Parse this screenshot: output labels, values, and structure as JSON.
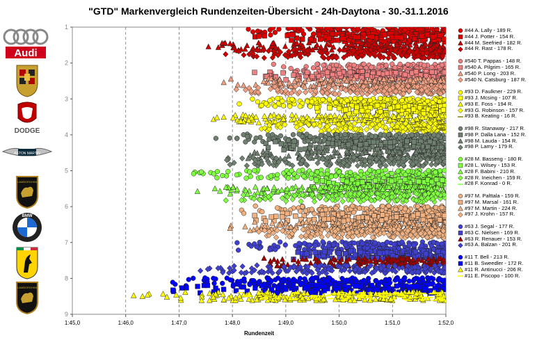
{
  "chart_data": {
    "type": "scatter",
    "title": "\"GTD\" Markenvergleich Rundenzeiten-Übersicht - 24h-Daytona - 30.-31.1.2016",
    "xlabel": "Rundenzeit",
    "ylabel": "",
    "x_ticks": [
      "1:45,0",
      "1:46,0",
      "1:47,0",
      "1:48,0",
      "1:49,0",
      "1:50,0",
      "1:51,0",
      "1:52,0"
    ],
    "x_range_seconds": [
      105,
      112
    ],
    "y_ticks": [
      "1",
      "2",
      "3",
      "4",
      "5",
      "6",
      "7",
      "8",
      "9"
    ],
    "y_range": [
      1,
      9
    ],
    "grid": "vertical dashed",
    "legend_position": "right",
    "brands": [
      {
        "name": "Audi",
        "car": "#44",
        "band": [
          1,
          2
        ]
      },
      {
        "name": "Porsche",
        "car": "#540",
        "band": [
          2,
          3
        ]
      },
      {
        "name": "Dodge",
        "car": "#93",
        "band": [
          3,
          4
        ]
      },
      {
        "name": "Aston Martin",
        "car": "#98",
        "band": [
          4,
          5
        ]
      },
      {
        "name": "Lamborghini",
        "car": "#28",
        "band": [
          5,
          6
        ]
      },
      {
        "name": "BMW",
        "car": "#97",
        "band": [
          6,
          7
        ]
      },
      {
        "name": "Ferrari",
        "car": "#63",
        "band": [
          7,
          8
        ]
      },
      {
        "name": "Lamborghini",
        "car": "#11",
        "band": [
          8,
          9
        ]
      }
    ],
    "series": [
      {
        "name": "#44 A. Lally - 189 R.",
        "marker": "circle",
        "color": "#e00000",
        "y": 1.1,
        "xmin": 108.0,
        "laps": 189
      },
      {
        "name": "#44 J. Potter - 154 R.",
        "marker": "square",
        "color": "#e00000",
        "y": 1.3,
        "xmin": 108.2,
        "laps": 154
      },
      {
        "name": "#44 M. Seefried - 182 R.",
        "marker": "triangle",
        "color": "#cc0000",
        "y": 1.55,
        "xmin": 107.4,
        "laps": 182
      },
      {
        "name": "#44 R. Rast - 178 R.",
        "marker": "diamond",
        "color": "#cc0000",
        "y": 1.75,
        "xmin": 107.7,
        "laps": 178
      },
      {
        "name": "#540 T. Pappas - 148 R.",
        "marker": "circle",
        "color": "#f08080",
        "y": 2.15,
        "xmin": 108.6,
        "laps": 148
      },
      {
        "name": "#540 A. Pilgrim - 165 R.",
        "marker": "square",
        "color": "#f08080",
        "y": 2.35,
        "xmin": 108.3,
        "laps": 165
      },
      {
        "name": "#540 P. Long - 203 R.",
        "marker": "triangle",
        "color": "#f0a080",
        "y": 2.55,
        "xmin": 107.8,
        "laps": 203
      },
      {
        "name": "#540 N. Catsburg - 187 R.",
        "marker": "diamond",
        "color": "#f0a080",
        "y": 2.75,
        "xmin": 107.8,
        "laps": 187
      },
      {
        "name": "#93 D. Faulkner - 229 R.",
        "marker": "circle",
        "color": "#ffff00",
        "y": 3.1,
        "xmin": 108.0,
        "laps": 229
      },
      {
        "name": "#93 J. Mcsing - 107 R.",
        "marker": "square",
        "color": "#ffff00",
        "y": 3.3,
        "xmin": 109.5,
        "laps": 107
      },
      {
        "name": "#93 E. Foss - 194 R.",
        "marker": "triangle",
        "color": "#ffff00",
        "y": 3.55,
        "xmin": 107.2,
        "laps": 194
      },
      {
        "name": "#93 G. Robinson - 157 R.",
        "marker": "diamond",
        "color": "#ffff00",
        "y": 3.8,
        "xmin": 108.4,
        "laps": 157
      },
      {
        "name": "#93 B. Keating - 16 R.",
        "marker": "star",
        "color": "#808000",
        "y": 3.8,
        "xmin": 111.0,
        "laps": 16
      },
      {
        "name": "#98 R. Stanaway - 217 R.",
        "marker": "circle",
        "color": "#708070",
        "y": 4.1,
        "xmin": 107.6,
        "laps": 217
      },
      {
        "name": "#98 P. Dalla Lana - 152 R.",
        "marker": "square",
        "color": "#708070",
        "y": 4.3,
        "xmin": 108.4,
        "laps": 152
      },
      {
        "name": "#98 M. Lauda - 154 R.",
        "marker": "triangle",
        "color": "#708070",
        "y": 4.55,
        "xmin": 108.0,
        "laps": 154
      },
      {
        "name": "#98 P. Lamy - 179 R.",
        "marker": "diamond",
        "color": "#708070",
        "y": 4.75,
        "xmin": 107.7,
        "laps": 179
      },
      {
        "name": "#28 M. Basseng - 180 R.",
        "marker": "circle",
        "color": "#80ff40",
        "y": 5.1,
        "xmin": 107.0,
        "laps": 180
      },
      {
        "name": "#28 L. Wilsey - 153 R.",
        "marker": "square",
        "color": "#80ff40",
        "y": 5.35,
        "xmin": 109.3,
        "laps": 153
      },
      {
        "name": "#28 F. Babini - 210 R.",
        "marker": "triangle",
        "color": "#80ff40",
        "y": 5.55,
        "xmin": 107.3,
        "laps": 210
      },
      {
        "name": "#28 R. Ineichen - 159 R.",
        "marker": "diamond",
        "color": "#80ff40",
        "y": 5.75,
        "xmin": 107.7,
        "laps": 159
      },
      {
        "name": "#28 F. Konrad - 0 R.",
        "marker": "star",
        "color": "#80ff40",
        "y": 5.75,
        "xmin": 112.0,
        "laps": 0
      },
      {
        "name": "#97 M. Palttala - 159 R.",
        "marker": "circle",
        "color": "#f0b080",
        "y": 6.1,
        "xmin": 108.0,
        "laps": 159
      },
      {
        "name": "#97 M. Marsal - 161 R.",
        "marker": "square",
        "color": "#f0b080",
        "y": 6.3,
        "xmin": 108.3,
        "laps": 161
      },
      {
        "name": "#97 M. Martin - 224 R.",
        "marker": "triangle",
        "color": "#f0b080",
        "y": 6.55,
        "xmin": 107.8,
        "laps": 224
      },
      {
        "name": "#97 J. Krohn - 157 R.",
        "marker": "diamond",
        "color": "#f0b080",
        "y": 6.75,
        "xmin": 108.2,
        "laps": 157
      },
      {
        "name": "#63 J. Segal - 177 R.",
        "marker": "circle",
        "color": "#4040d0",
        "y": 7.1,
        "xmin": 108.0,
        "laps": 177
      },
      {
        "name": "#63 C. Nielsen - 169 R.",
        "marker": "square",
        "color": "#4040d0",
        "y": 7.35,
        "xmin": 109.0,
        "laps": 169
      },
      {
        "name": "#63 R. Renauer - 153 R.",
        "marker": "triangle",
        "color": "#a00000",
        "y": 7.55,
        "xmin": 108.5,
        "laps": 153
      },
      {
        "name": "#63 A. Balzan - 201 R.",
        "marker": "diamond",
        "color": "#4040d0",
        "y": 7.75,
        "xmin": 107.2,
        "laps": 201
      },
      {
        "name": "#11 T. Bell - 213 R.",
        "marker": "circle",
        "color": "#0000ff",
        "y": 8.1,
        "xmin": 106.5,
        "laps": 213
      },
      {
        "name": "#11 B. Sweedler - 172 R.",
        "marker": "square",
        "color": "#0000ff",
        "y": 8.3,
        "xmin": 106.8,
        "laps": 172
      },
      {
        "name": "#11 R. Antinucci - 206 R.",
        "marker": "triangle",
        "color": "#ffff00",
        "y": 8.5,
        "xmin": 105.9,
        "laps": 206
      },
      {
        "name": "#11 E. Piscopo - 100 R.",
        "marker": "star",
        "color": "#ffff00",
        "y": 8.5,
        "xmin": 107.8,
        "laps": 100
      }
    ]
  },
  "logos": [
    {
      "name": "audi-logo",
      "text": "Audi"
    },
    {
      "name": "porsche-logo",
      "text": ""
    },
    {
      "name": "dodge-logo",
      "text": "DODGE"
    },
    {
      "name": "aston-martin-logo",
      "text": "ASTON MARTIN"
    },
    {
      "name": "lamborghini-logo",
      "text": "LAMBORGHINI"
    },
    {
      "name": "bmw-logo",
      "text": "BMW"
    },
    {
      "name": "ferrari-logo",
      "text": ""
    },
    {
      "name": "lamborghini-logo-2",
      "text": "LAMBORGHINI"
    }
  ]
}
